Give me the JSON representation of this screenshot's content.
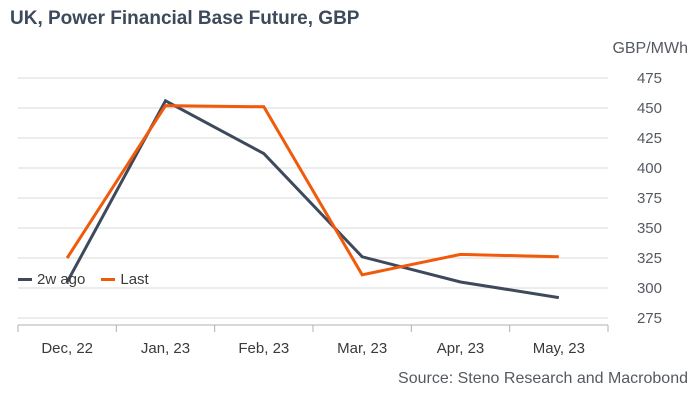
{
  "chart_data": {
    "type": "line",
    "title": "UK, Power Financial Base Future, GBP",
    "unit_label": "GBP/MWh",
    "source": "Source: Steno Research and Macrobond",
    "categories": [
      "Dec, 22",
      "Jan, 23",
      "Feb, 23",
      "Mar, 23",
      "Apr, 23",
      "May, 23"
    ],
    "y_ticks": [
      275,
      300,
      325,
      350,
      375,
      400,
      425,
      450,
      475
    ],
    "ylim": [
      275,
      475
    ],
    "grid": true,
    "legend_position": "bottom-left",
    "series": [
      {
        "name": "2w ago",
        "color": "#3e4a5c",
        "values": [
          305,
          456,
          412,
          326,
          305,
          292
        ]
      },
      {
        "name": "Last",
        "color": "#f05a0a",
        "values": [
          325,
          452,
          451,
          311,
          328,
          326
        ]
      }
    ]
  }
}
